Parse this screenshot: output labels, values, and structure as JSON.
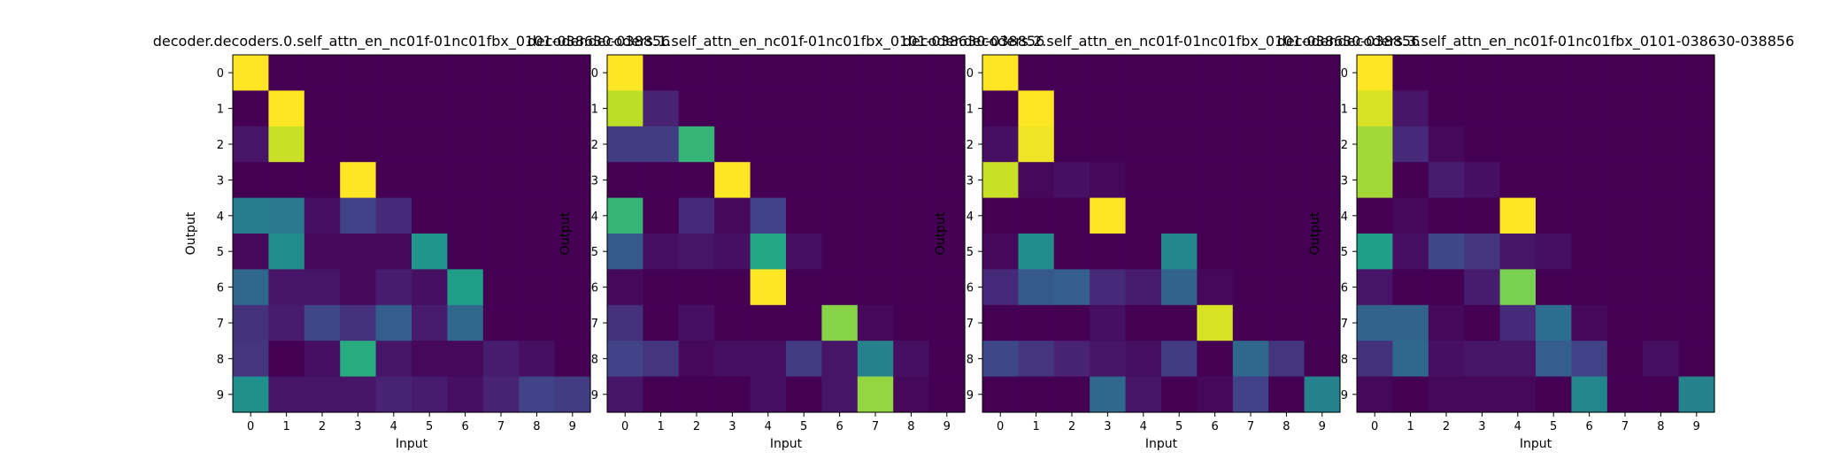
{
  "figure": {
    "colormap": "viridis",
    "vmin": 0,
    "vmax": 1
  },
  "chart_data": [
    {
      "type": "heatmap",
      "title": "decoder.decoders.0.self_attn_en_nc01f-01nc01fbx_0101-038630-038856",
      "xlabel": "Input",
      "ylabel": "Output",
      "x_ticks": [
        "0",
        "1",
        "2",
        "3",
        "4",
        "5",
        "6",
        "7",
        "8",
        "9"
      ],
      "y_ticks": [
        "0",
        "1",
        "2",
        "3",
        "4",
        "5",
        "6",
        "7",
        "8",
        "9"
      ],
      "values": [
        [
          1.0,
          0,
          0,
          0,
          0,
          0,
          0,
          0,
          0,
          0
        ],
        [
          0,
          1.0,
          0,
          0,
          0,
          0,
          0,
          0,
          0,
          0
        ],
        [
          0.06,
          0.92,
          0,
          0,
          0,
          0,
          0,
          0,
          0,
          0
        ],
        [
          0,
          0,
          0,
          1.0,
          0,
          0,
          0,
          0,
          0,
          0
        ],
        [
          0.42,
          0.4,
          0.04,
          0.2,
          0.12,
          0,
          0,
          0,
          0,
          0
        ],
        [
          0.02,
          0.48,
          0.02,
          0.02,
          0.02,
          0.52,
          0,
          0,
          0,
          0
        ],
        [
          0.34,
          0.06,
          0.06,
          0.02,
          0.08,
          0.04,
          0.56,
          0,
          0,
          0
        ],
        [
          0.14,
          0.08,
          0.22,
          0.14,
          0.3,
          0.08,
          0.34,
          0,
          0,
          0
        ],
        [
          0.16,
          0,
          0.04,
          0.62,
          0.06,
          0.02,
          0.02,
          0.08,
          0.04,
          0
        ],
        [
          0.5,
          0.06,
          0.06,
          0.06,
          0.1,
          0.08,
          0.04,
          0.1,
          0.2,
          0.18
        ]
      ]
    },
    {
      "type": "heatmap",
      "title": "decoder.decoders.1.self_attn_en_nc01f-01nc01fbx_0101-038630-038856",
      "xlabel": "Input",
      "ylabel": "Output",
      "x_ticks": [
        "0",
        "1",
        "2",
        "3",
        "4",
        "5",
        "6",
        "7",
        "8",
        "9"
      ],
      "y_ticks": [
        "0",
        "1",
        "2",
        "3",
        "4",
        "5",
        "6",
        "7",
        "8",
        "9"
      ],
      "values": [
        [
          1.0,
          0,
          0,
          0,
          0,
          0,
          0,
          0,
          0,
          0
        ],
        [
          0.9,
          0.1,
          0,
          0,
          0,
          0,
          0,
          0,
          0,
          0
        ],
        [
          0.18,
          0.18,
          0.66,
          0,
          0,
          0,
          0,
          0,
          0,
          0
        ],
        [
          0,
          0,
          0,
          1.0,
          0,
          0,
          0,
          0,
          0,
          0
        ],
        [
          0.66,
          0,
          0.12,
          0.02,
          0.2,
          0,
          0,
          0,
          0,
          0
        ],
        [
          0.28,
          0.04,
          0.06,
          0.04,
          0.6,
          0.04,
          0,
          0,
          0,
          0
        ],
        [
          0.02,
          0,
          0,
          0,
          1.0,
          0,
          0,
          0,
          0,
          0
        ],
        [
          0.14,
          0,
          0.04,
          0,
          0,
          0,
          0.82,
          0.02,
          0,
          0
        ],
        [
          0.2,
          0.16,
          0.02,
          0.04,
          0.04,
          0.18,
          0.06,
          0.44,
          0.04,
          0
        ],
        [
          0.06,
          0,
          0,
          0,
          0.04,
          0,
          0.06,
          0.84,
          0.02,
          0
        ]
      ]
    },
    {
      "type": "heatmap",
      "title": "decoder.decoders.2.self_attn_en_nc01f-01nc01fbx_0101-038630-038856",
      "xlabel": "Input",
      "ylabel": "Output",
      "x_ticks": [
        "0",
        "1",
        "2",
        "3",
        "4",
        "5",
        "6",
        "7",
        "8",
        "9"
      ],
      "y_ticks": [
        "0",
        "1",
        "2",
        "3",
        "4",
        "5",
        "6",
        "7",
        "8",
        "9"
      ],
      "values": [
        [
          1.0,
          0,
          0,
          0,
          0,
          0,
          0,
          0,
          0,
          0
        ],
        [
          0,
          1.0,
          0,
          0,
          0,
          0,
          0,
          0,
          0,
          0
        ],
        [
          0.04,
          0.98,
          0,
          0,
          0,
          0,
          0,
          0,
          0,
          0
        ],
        [
          0.92,
          0.02,
          0.04,
          0.02,
          0,
          0,
          0,
          0,
          0,
          0
        ],
        [
          0,
          0,
          0,
          1.0,
          0,
          0,
          0,
          0,
          0,
          0
        ],
        [
          0.02,
          0.48,
          0,
          0,
          0,
          0.46,
          0,
          0,
          0,
          0
        ],
        [
          0.12,
          0.28,
          0.3,
          0.12,
          0.08,
          0.32,
          0.02,
          0,
          0,
          0
        ],
        [
          0,
          0,
          0,
          0.04,
          0,
          0,
          0.94,
          0,
          0,
          0
        ],
        [
          0.22,
          0.16,
          0.1,
          0.06,
          0.04,
          0.18,
          0,
          0.34,
          0.16,
          0
        ],
        [
          0,
          0,
          0,
          0.34,
          0.06,
          0,
          0.02,
          0.2,
          0,
          0.44
        ]
      ]
    },
    {
      "type": "heatmap",
      "title": "decoder.decoders.3.self_attn_en_nc01f-01nc01fbx_0101-038630-038856",
      "xlabel": "Input",
      "ylabel": "Output",
      "x_ticks": [
        "0",
        "1",
        "2",
        "3",
        "4",
        "5",
        "6",
        "7",
        "8",
        "9"
      ],
      "y_ticks": [
        "0",
        "1",
        "2",
        "3",
        "4",
        "5",
        "6",
        "7",
        "8",
        "9"
      ],
      "values": [
        [
          1.0,
          0,
          0,
          0,
          0,
          0,
          0,
          0,
          0,
          0
        ],
        [
          0.94,
          0.06,
          0,
          0,
          0,
          0,
          0,
          0,
          0,
          0
        ],
        [
          0.86,
          0.12,
          0.02,
          0,
          0,
          0,
          0,
          0,
          0,
          0
        ],
        [
          0.86,
          0,
          0.08,
          0.04,
          0,
          0,
          0,
          0,
          0,
          0
        ],
        [
          0,
          0.02,
          0,
          0,
          1.0,
          0,
          0,
          0,
          0,
          0
        ],
        [
          0.56,
          0.04,
          0.22,
          0.16,
          0.06,
          0.04,
          0,
          0,
          0,
          0
        ],
        [
          0.06,
          0,
          0,
          0.08,
          0.8,
          0,
          0,
          0,
          0,
          0
        ],
        [
          0.32,
          0.32,
          0.02,
          0,
          0.12,
          0.36,
          0.02,
          0,
          0,
          0
        ],
        [
          0.14,
          0.34,
          0.04,
          0.06,
          0.06,
          0.3,
          0.2,
          0,
          0.04,
          0
        ],
        [
          0.02,
          0,
          0.02,
          0.02,
          0.02,
          0,
          0.46,
          0,
          0,
          0.44
        ]
      ]
    }
  ]
}
